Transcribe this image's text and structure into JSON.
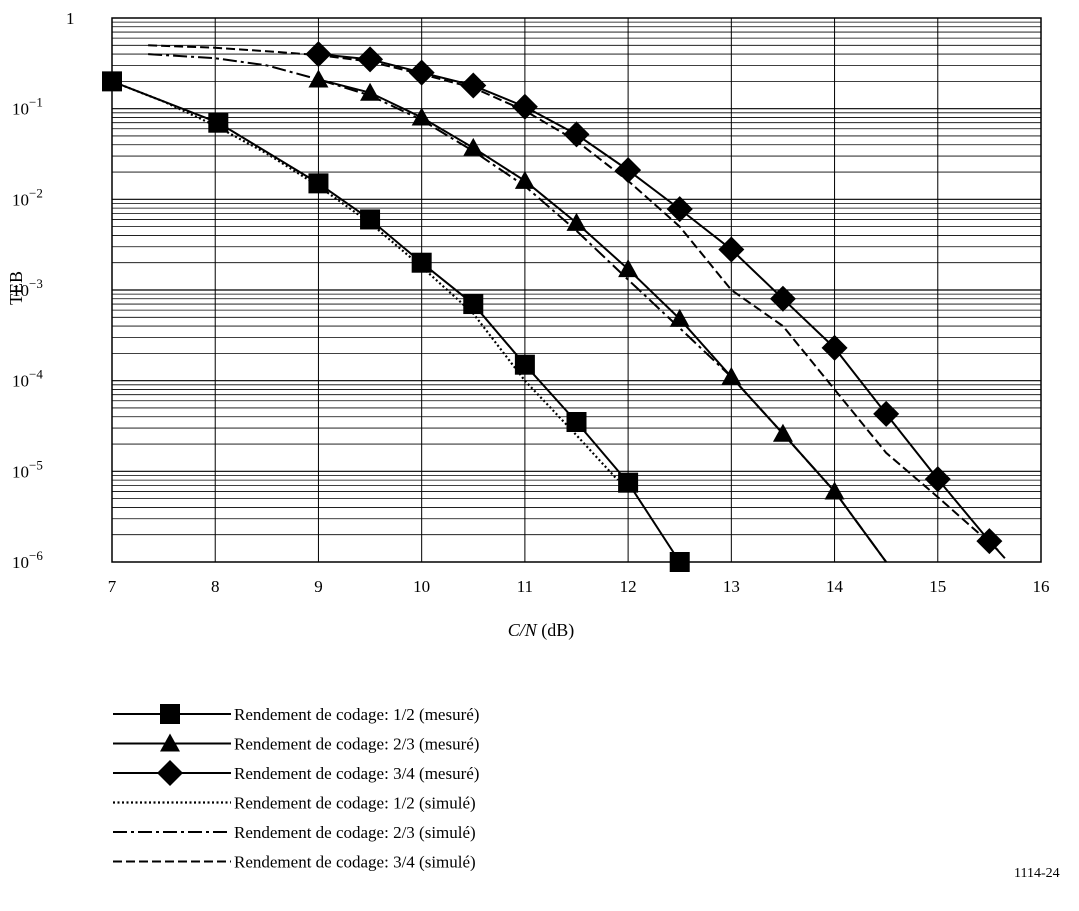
{
  "chart_data": {
    "type": "line",
    "xlabel_italic": "C/N",
    "xlabel_unit": " (dB)",
    "ylabel": "TEB",
    "y_scale": "log",
    "xlim": [
      7,
      16
    ],
    "ylim": [
      1e-06,
      1
    ],
    "grid": true,
    "legend_position": "below",
    "x_ticks": [
      "7",
      "8",
      "9",
      "10",
      "11",
      "12",
      "13",
      "14",
      "15",
      "16"
    ],
    "y_ticks": [
      {
        "value": 1,
        "base": "1",
        "exp": ""
      },
      {
        "value": 0.1,
        "base": "10",
        "exp": "−1"
      },
      {
        "value": 0.01,
        "base": "10",
        "exp": "−2"
      },
      {
        "value": 0.001,
        "base": "10",
        "exp": "−3"
      },
      {
        "value": 0.0001,
        "base": "10",
        "exp": "−4"
      },
      {
        "value": 1e-05,
        "base": "10",
        "exp": "−5"
      },
      {
        "value": 1e-06,
        "base": "10",
        "exp": "−6"
      }
    ],
    "series": [
      {
        "name": "Rendement de codage: 1/2 (mesuré)",
        "style": "solid",
        "marker": "square",
        "x": [
          7.0,
          8.03,
          9.0,
          9.5,
          10.0,
          10.5,
          11.0,
          11.5,
          12.0,
          12.5
        ],
        "y": [
          0.2,
          0.07,
          0.015,
          0.006,
          0.002,
          0.0007,
          0.00015,
          3.5e-05,
          7.5e-06,
          1e-06
        ]
      },
      {
        "name": "Rendement  de codage: 2/3 (mesuré)",
        "style": "solid",
        "marker": "triangle",
        "x": [
          9.0,
          9.5,
          10.0,
          10.5,
          11.0,
          11.5,
          12.0,
          12.5,
          13.0,
          13.5,
          14.0,
          14.5
        ],
        "y": [
          0.21,
          0.15,
          0.08,
          0.037,
          0.016,
          0.0055,
          0.0017,
          0.00048,
          0.00011,
          2.6e-05,
          6e-06,
          1e-06
        ]
      },
      {
        "name": "Rendement  de codage: 3/4 (mesuré)",
        "style": "solid",
        "marker": "diamond",
        "x": [
          9.0,
          9.5,
          10.0,
          10.5,
          11.0,
          11.5,
          12.0,
          12.5,
          13.0,
          13.5,
          14.0,
          14.5,
          15.0,
          15.5,
          15.65
        ],
        "y": [
          0.4,
          0.35,
          0.25,
          0.18,
          0.105,
          0.052,
          0.021,
          0.0078,
          0.0028,
          0.0008,
          0.00023,
          4.3e-05,
          8.2e-06,
          1.7e-06,
          1.1e-06
        ]
      },
      {
        "name": "Rendement  de codage: 1/2 (simulé)",
        "style": "dotted",
        "marker": "none",
        "x": [
          7.0,
          7.5,
          8.0,
          8.5,
          9.0,
          9.5,
          10.0,
          10.5,
          11.0,
          11.5,
          11.9
        ],
        "y": [
          0.2,
          0.12,
          0.065,
          0.032,
          0.014,
          0.0055,
          0.0018,
          0.00055,
          0.0001,
          2.5e-05,
          8e-06
        ]
      },
      {
        "name": "Rendement  de codage: 2/3 (simulé)",
        "style": "dashdot",
        "marker": "none",
        "x": [
          7.35,
          8.0,
          8.5,
          9.0,
          9.5,
          10.0,
          10.5,
          11.0,
          11.5,
          12.0,
          12.5,
          13.0,
          13.5,
          14.0,
          14.5
        ],
        "y": [
          0.4,
          0.36,
          0.3,
          0.21,
          0.14,
          0.075,
          0.034,
          0.014,
          0.0045,
          0.0013,
          0.00038,
          0.00011,
          2.6e-05,
          6e-06,
          1e-06
        ]
      },
      {
        "name": "Rendement  de codage: 3/4 (simulé)",
        "style": "dashed",
        "marker": "none",
        "x": [
          7.35,
          8.0,
          8.5,
          9.0,
          9.5,
          10.0,
          10.5,
          11.0,
          11.5,
          12.0,
          12.5,
          13.0,
          13.5,
          14.0,
          14.5,
          15.0,
          15.6
        ],
        "y": [
          0.5,
          0.47,
          0.43,
          0.39,
          0.33,
          0.24,
          0.17,
          0.095,
          0.044,
          0.016,
          0.005,
          0.001,
          0.0004,
          8e-05,
          1.6e-05,
          5.2e-06,
          1.3e-06
        ]
      }
    ]
  },
  "figure_id": "1114-24"
}
